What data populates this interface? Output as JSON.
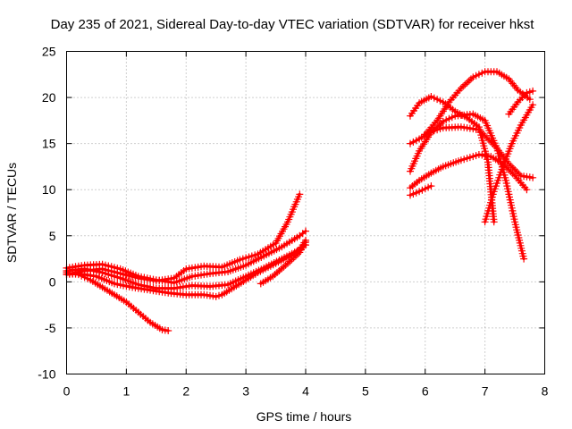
{
  "chart_data": {
    "type": "scatter",
    "title": "Day 235 of 2021, Sidereal Day-to-day VTEC variation (SDTVAR) for receiver hkst",
    "xlabel": "GPS time / hours",
    "ylabel": "SDTVAR / TECUs",
    "xlim": [
      0,
      8
    ],
    "ylim": [
      -10,
      25
    ],
    "xticks": [
      "0",
      "1",
      "2",
      "3",
      "4",
      "5",
      "6",
      "7",
      "8"
    ],
    "yticks": [
      "-10",
      "-5",
      "0",
      "5",
      "10",
      "15",
      "20",
      "25"
    ],
    "grid": true,
    "marker": "+",
    "color": "#ff0000",
    "series": [
      {
        "x": [
          0.0,
          0.2,
          0.4,
          0.6,
          0.8,
          1.0,
          1.2,
          1.4,
          1.6,
          1.7
        ],
        "y": [
          1.0,
          0.8,
          0.2,
          -0.6,
          -1.4,
          -2.2,
          -3.3,
          -4.4,
          -5.2,
          -5.3
        ]
      },
      {
        "x": [
          0.0,
          0.2,
          0.5,
          0.8,
          1.1,
          1.4,
          1.7,
          2.0,
          2.3,
          2.5,
          2.6,
          2.8,
          3.0,
          3.2,
          3.5,
          3.8,
          4.0
        ],
        "y": [
          0.8,
          0.9,
          0.6,
          -0.2,
          -0.6,
          -0.9,
          -1.2,
          -1.4,
          -1.4,
          -1.6,
          -1.4,
          -0.6,
          0.2,
          1.0,
          2.0,
          3.0,
          4.0
        ]
      },
      {
        "x": [
          0.0,
          0.3,
          0.6,
          0.9,
          1.2,
          1.5,
          1.8,
          2.1,
          2.4,
          2.7,
          3.0,
          3.3,
          3.6,
          3.9,
          4.0
        ],
        "y": [
          1.2,
          1.4,
          1.0,
          0.4,
          -0.3,
          -0.7,
          -0.7,
          -0.4,
          -0.5,
          -0.3,
          0.6,
          1.5,
          2.5,
          3.5,
          4.5
        ]
      },
      {
        "x": [
          0.0,
          0.3,
          0.6,
          0.9,
          1.2,
          1.5,
          1.8,
          2.1,
          2.4,
          2.7,
          3.0,
          3.3,
          3.6,
          3.9,
          4.0
        ],
        "y": [
          1.5,
          1.8,
          1.9,
          1.4,
          0.6,
          0.2,
          -0.1,
          0.6,
          0.9,
          1.1,
          1.8,
          2.8,
          3.8,
          5.0,
          5.5
        ]
      },
      {
        "x": [
          0.0,
          0.3,
          0.6,
          0.9,
          1.2,
          1.5,
          1.8,
          2.0,
          2.3,
          2.6,
          2.9,
          3.2,
          3.5,
          3.7,
          3.9
        ],
        "y": [
          0.8,
          1.2,
          1.4,
          0.9,
          0.4,
          0.1,
          0.4,
          1.4,
          1.7,
          1.6,
          2.4,
          3.0,
          4.2,
          6.5,
          9.5
        ]
      },
      {
        "x": [
          3.25,
          3.45,
          3.7,
          3.9,
          4.0
        ],
        "y": [
          -0.2,
          0.6,
          2.0,
          3.2,
          4.3
        ]
      },
      {
        "x": [
          5.75,
          5.9,
          6.1,
          6.3,
          6.6,
          6.9,
          7.1,
          7.3,
          7.5,
          7.7
        ],
        "y": [
          10.2,
          11.0,
          11.8,
          12.5,
          13.2,
          13.8,
          13.6,
          12.8,
          11.5,
          10.0
        ]
      },
      {
        "x": [
          5.75,
          5.9,
          6.1
        ],
        "y": [
          9.4,
          9.8,
          10.4
        ]
      },
      {
        "x": [
          5.75,
          5.9,
          6.1,
          6.3,
          6.6,
          6.9,
          7.2,
          7.4,
          7.6,
          7.8
        ],
        "y": [
          15.0,
          15.5,
          16.3,
          16.7,
          16.8,
          16.5,
          14.5,
          12.8,
          11.5,
          11.3
        ]
      },
      {
        "x": [
          5.75,
          5.9,
          6.1,
          6.3,
          6.5,
          6.8,
          7.0,
          7.2,
          7.35,
          7.5,
          7.65
        ],
        "y": [
          12.0,
          14.2,
          16.2,
          17.4,
          18.0,
          18.2,
          17.5,
          14.5,
          11.0,
          6.5,
          2.5
        ]
      },
      {
        "x": [
          5.75,
          5.9,
          6.1,
          6.3,
          6.5,
          6.7,
          6.9,
          7.05,
          7.15
        ],
        "y": [
          18.0,
          19.4,
          20.1,
          19.5,
          18.5,
          17.8,
          16.8,
          13.0,
          6.5
        ]
      },
      {
        "x": [
          6.0,
          6.2,
          6.4,
          6.6,
          6.8,
          7.0,
          7.2,
          7.4,
          7.55,
          7.75
        ],
        "y": [
          16.0,
          17.5,
          19.5,
          21.0,
          22.2,
          22.8,
          22.8,
          22.0,
          20.8,
          19.8
        ]
      },
      {
        "x": [
          7.0,
          7.15,
          7.3,
          7.45,
          7.6,
          7.8
        ],
        "y": [
          6.5,
          9.8,
          12.5,
          15.0,
          17.0,
          19.2
        ]
      },
      {
        "x": [
          7.4,
          7.55,
          7.7,
          7.8
        ],
        "y": [
          18.2,
          19.5,
          20.5,
          20.7
        ]
      }
    ]
  }
}
